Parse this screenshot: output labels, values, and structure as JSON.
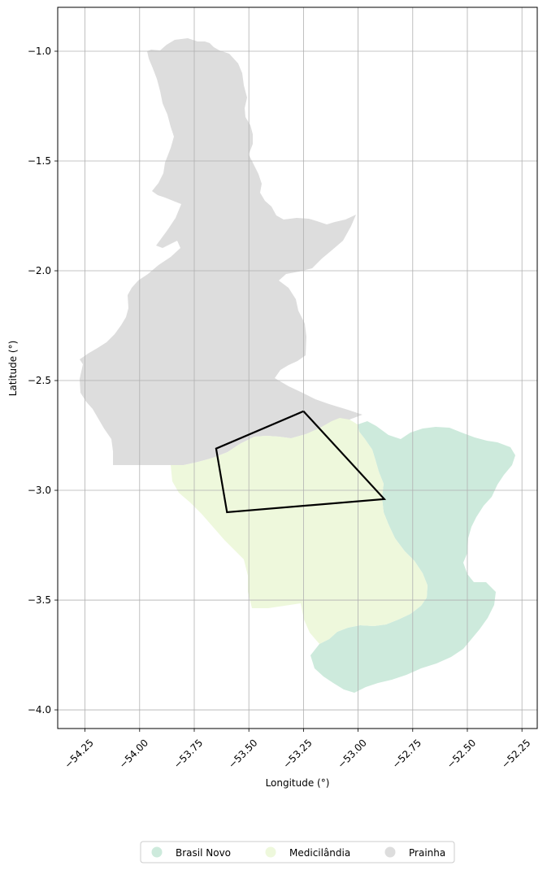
{
  "axes": {
    "xlabel": "Longitude (°)",
    "ylabel": "Latitude (°)",
    "xlim": [
      -54.375,
      -52.18
    ],
    "ylim": [
      -4.085,
      -0.8
    ],
    "xticks": [
      -54.25,
      -54.0,
      -53.75,
      -53.5,
      -53.25,
      -53.0,
      -52.75,
      -52.5,
      -52.25
    ],
    "xtick_labels": [
      "−54.25",
      "−54.00",
      "−53.75",
      "−53.50",
      "−53.25",
      "−53.00",
      "−52.75",
      "−52.50",
      "−52.25"
    ],
    "yticks": [
      -1.0,
      -1.5,
      -2.0,
      -2.5,
      -3.0,
      -3.5,
      -4.0
    ],
    "ytick_labels": [
      "−1.0",
      "−1.5",
      "−2.0",
      "−2.5",
      "−3.0",
      "−3.5",
      "−4.0"
    ],
    "grid": true
  },
  "regions": [
    {
      "name": "Brasil Novo",
      "color": "#cdeadc"
    },
    {
      "name": "Medicilândia",
      "color": "#eef8dc"
    },
    {
      "name": "Prainha",
      "color": "#dddddd"
    }
  ],
  "legend": {
    "placement": "bottom-center",
    "items": [
      {
        "label": "Brasil Novo",
        "color": "#cdeadc"
      },
      {
        "label": "Medicilândia",
        "color": "#eef8dc"
      },
      {
        "label": "Prainha",
        "color": "#dddddd"
      }
    ]
  },
  "highlight_polygon": {
    "stroke": "#000000",
    "lonlat": [
      [
        -53.25,
        -2.64
      ],
      [
        -53.65,
        -2.81
      ],
      [
        -53.6,
        -3.1
      ],
      [
        -52.88,
        -3.04
      ],
      [
        -53.25,
        -2.64
      ]
    ]
  }
}
